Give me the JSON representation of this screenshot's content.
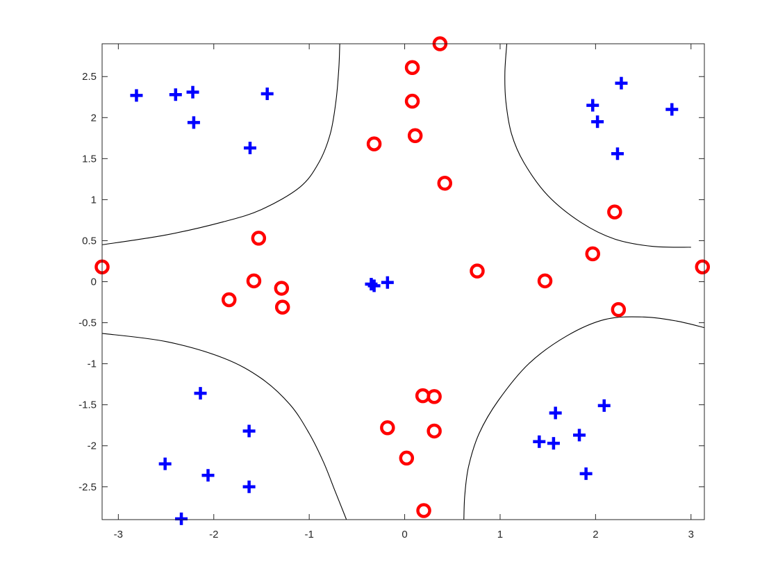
{
  "chart_data": {
    "type": "scatter",
    "title": "",
    "xlabel": "",
    "ylabel": "",
    "xlim": [
      -3.17,
      3.14
    ],
    "ylim": [
      -2.9,
      2.9
    ],
    "grid": false,
    "box": true,
    "x_ticks": [
      -3,
      -2,
      -1,
      0,
      1,
      2,
      3
    ],
    "x_tick_labels": [
      "-3",
      "-2",
      "-1",
      "0",
      "1",
      "2",
      "3"
    ],
    "y_ticks": [
      -2.5,
      -2,
      -1.5,
      -1,
      -0.5,
      0,
      0.5,
      1,
      1.5,
      2,
      2.5
    ],
    "y_tick_labels": [
      "-2.5",
      "-2",
      "-1.5",
      "-1",
      "-0.5",
      "0",
      "0.5",
      "1",
      "1.5",
      "2",
      "2.5"
    ],
    "series": [
      {
        "marker": "plus",
        "color": "#0000ff",
        "points": [
          [
            -2.81,
            2.27
          ],
          [
            -2.4,
            2.28
          ],
          [
            -2.22,
            2.31
          ],
          [
            -1.44,
            2.29
          ],
          [
            -2.21,
            1.94
          ],
          [
            -1.62,
            1.63
          ],
          [
            1.97,
            2.15
          ],
          [
            2.27,
            2.42
          ],
          [
            2.8,
            2.1
          ],
          [
            2.02,
            1.95
          ],
          [
            2.23,
            1.56
          ],
          [
            -0.35,
            -0.03
          ],
          [
            -0.32,
            -0.05
          ],
          [
            -0.18,
            -0.01
          ],
          [
            -2.14,
            -1.36
          ],
          [
            -1.63,
            -1.82
          ],
          [
            -2.51,
            -2.22
          ],
          [
            -2.06,
            -2.36
          ],
          [
            -1.63,
            -2.5
          ],
          [
            -2.34,
            -2.89
          ],
          [
            1.58,
            -1.6
          ],
          [
            2.09,
            -1.51
          ],
          [
            1.41,
            -1.95
          ],
          [
            1.56,
            -1.97
          ],
          [
            1.83,
            -1.87
          ],
          [
            1.9,
            -2.34
          ]
        ]
      },
      {
        "marker": "circle",
        "color": "#ff0000",
        "points": [
          [
            0.37,
            2.9
          ],
          [
            0.08,
            2.61
          ],
          [
            0.08,
            2.2
          ],
          [
            0.11,
            1.78
          ],
          [
            -0.32,
            1.68
          ],
          [
            0.42,
            1.2
          ],
          [
            2.2,
            0.85
          ],
          [
            1.97,
            0.34
          ],
          [
            3.12,
            0.18
          ],
          [
            -3.17,
            0.18
          ],
          [
            -1.53,
            0.53
          ],
          [
            -1.58,
            0.01
          ],
          [
            -1.29,
            -0.08
          ],
          [
            -1.84,
            -0.22
          ],
          [
            -1.28,
            -0.31
          ],
          [
            0.76,
            0.13
          ],
          [
            1.47,
            0.01
          ],
          [
            2.24,
            -0.34
          ],
          [
            0.19,
            -1.39
          ],
          [
            0.31,
            -1.4
          ],
          [
            -0.18,
            -1.78
          ],
          [
            0.31,
            -1.82
          ],
          [
            0.02,
            -2.15
          ],
          [
            0.2,
            -2.79
          ]
        ]
      }
    ],
    "decision_boundary": {
      "color": "#000000",
      "curves": [
        [
          [
            -3.17,
            0.45
          ],
          [
            -2.5,
            0.57
          ],
          [
            -1.9,
            0.73
          ],
          [
            -1.5,
            0.88
          ],
          [
            -1.1,
            1.15
          ],
          [
            -0.9,
            1.45
          ],
          [
            -0.78,
            1.8
          ],
          [
            -0.72,
            2.2
          ],
          [
            -0.69,
            2.6
          ],
          [
            -0.68,
            2.9
          ]
        ],
        [
          [
            1.07,
            2.9
          ],
          [
            1.05,
            2.55
          ],
          [
            1.06,
            2.2
          ],
          [
            1.12,
            1.8
          ],
          [
            1.25,
            1.45
          ],
          [
            1.5,
            1.05
          ],
          [
            1.85,
            0.72
          ],
          [
            2.2,
            0.52
          ],
          [
            2.6,
            0.43
          ],
          [
            3.0,
            0.42
          ]
        ],
        [
          [
            -3.17,
            -0.63
          ],
          [
            -2.5,
            -0.73
          ],
          [
            -1.9,
            -0.93
          ],
          [
            -1.5,
            -1.18
          ],
          [
            -1.2,
            -1.5
          ],
          [
            -1.0,
            -1.85
          ],
          [
            -0.85,
            -2.2
          ],
          [
            -0.73,
            -2.55
          ],
          [
            -0.61,
            -2.9
          ]
        ],
        [
          [
            0.62,
            -2.9
          ],
          [
            0.63,
            -2.6
          ],
          [
            0.67,
            -2.25
          ],
          [
            0.78,
            -1.85
          ],
          [
            0.98,
            -1.45
          ],
          [
            1.3,
            -1.0
          ],
          [
            1.7,
            -0.66
          ],
          [
            2.1,
            -0.46
          ],
          [
            2.5,
            -0.43
          ],
          [
            2.85,
            -0.48
          ],
          [
            3.14,
            -0.56
          ]
        ]
      ]
    }
  }
}
